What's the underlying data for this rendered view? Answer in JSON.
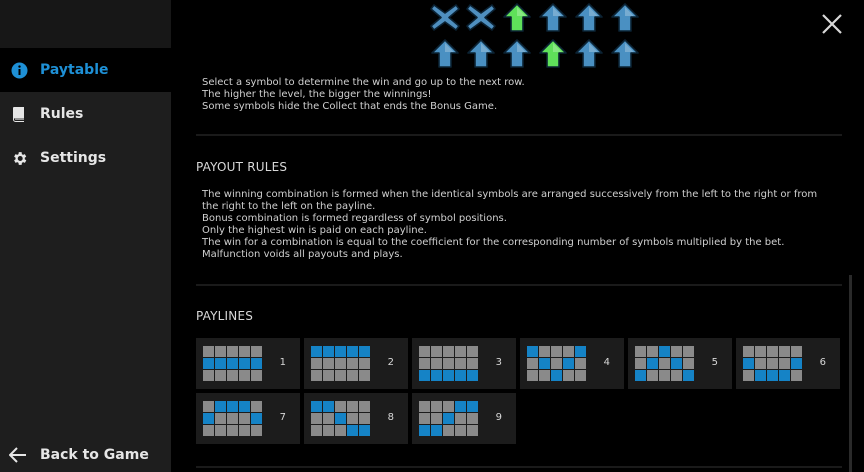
{
  "sidebar": {
    "items": [
      {
        "label": "Paytable",
        "icon": "info-icon",
        "active": true
      },
      {
        "label": "Rules",
        "icon": "book-icon",
        "active": false
      },
      {
        "label": "Settings",
        "icon": "gear-icon",
        "active": false
      }
    ],
    "back_label": "Back to Game"
  },
  "colors": {
    "accent": "#1e90d6",
    "payline_on": "#1583c6",
    "payline_off": "#8a8a8a",
    "arrow_blue": "#4a90c2",
    "arrow_green": "#5fe05a",
    "x_blue": "#4f8fbf"
  },
  "bonus_example": {
    "rows": [
      [
        "x",
        "x",
        "green",
        "blue",
        "blue",
        "blue"
      ],
      [
        "blue",
        "blue",
        "blue",
        "green",
        "blue",
        "blue"
      ]
    ]
  },
  "bonus_text": {
    "line1": "Select a symbol to determine the win and go up to the next row.",
    "line2": "The higher the level, the bigger the winnings!",
    "line3": "Some symbols hide the Collect that ends the Bonus Game."
  },
  "payout_rules": {
    "title": "PAYOUT RULES",
    "line1": "The winning combination is formed when the identical symbols are arranged successively from the left to the right or from",
    "line2": "the right to the left on the payline.",
    "line3": "Bonus combination is formed regardless of symbol positions.",
    "line4": "Only the highest win is paid on each payline.",
    "line5": "The win for a combination is equal to the coefficient for the corresponding number of symbols multiplied by the bet.",
    "line6": "Malfunction voids all payouts and plays."
  },
  "paylines": {
    "title": "PAYLINES",
    "items": [
      {
        "number": "1",
        "rows": [
          1,
          1,
          1,
          1,
          1
        ]
      },
      {
        "number": "2",
        "rows": [
          0,
          0,
          0,
          0,
          0
        ]
      },
      {
        "number": "3",
        "rows": [
          2,
          2,
          2,
          2,
          2
        ]
      },
      {
        "number": "4",
        "rows": [
          0,
          1,
          2,
          1,
          0
        ]
      },
      {
        "number": "5",
        "rows": [
          2,
          1,
          0,
          1,
          2
        ]
      },
      {
        "number": "6",
        "rows": [
          1,
          2,
          2,
          2,
          1
        ]
      },
      {
        "number": "7",
        "rows": [
          1,
          0,
          0,
          0,
          1
        ]
      },
      {
        "number": "8",
        "rows": [
          0,
          0,
          1,
          2,
          2
        ]
      },
      {
        "number": "9",
        "rows": [
          2,
          2,
          1,
          0,
          0
        ]
      }
    ]
  }
}
